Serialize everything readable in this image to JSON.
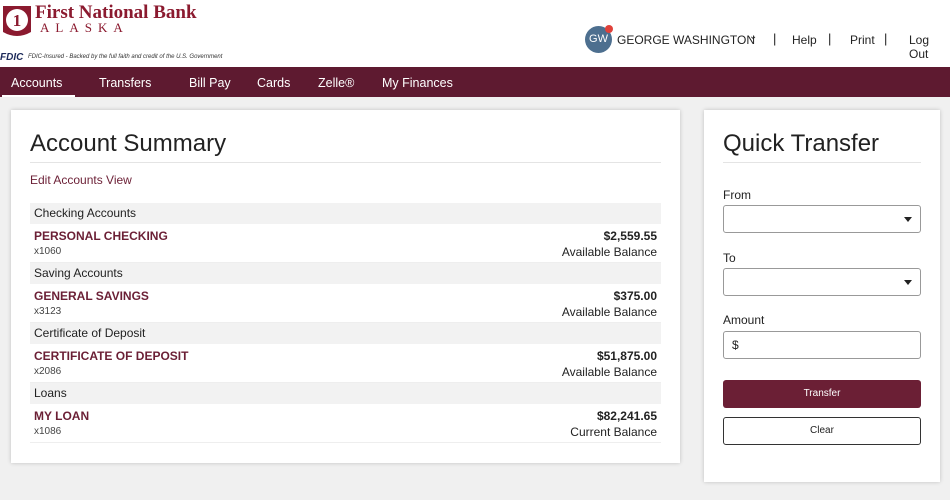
{
  "header": {
    "bank_name": "First National Bank",
    "bank_region": "ALASKA",
    "fdic_logo": "FDIC",
    "fdic_text": "FDIC-Insured - Backed by the full faith and credit of the U.S. Government",
    "user_initials": "GW",
    "user_name": "GEORGE WASHINGTON",
    "links": [
      "Help",
      "Print",
      "Log Out"
    ]
  },
  "nav": [
    "Accounts",
    "Transfers",
    "Bill Pay",
    "Cards",
    "Zelle®",
    "My Finances"
  ],
  "summary": {
    "title": "Account Summary",
    "edit_link": "Edit Accounts View",
    "groups": [
      {
        "heading": "Checking Accounts",
        "name": "PERSONAL CHECKING",
        "number": "x1060",
        "balance": "$2,559.55",
        "balance_type": "Available Balance"
      },
      {
        "heading": "Saving Accounts",
        "name": "GENERAL SAVINGS",
        "number": "x3123",
        "balance": "$375.00",
        "balance_type": "Available Balance"
      },
      {
        "heading": "Certificate of Deposit",
        "name": "CERTIFICATE OF DEPOSIT",
        "number": "x2086",
        "balance": "$51,875.00",
        "balance_type": "Available Balance"
      },
      {
        "heading": "Loans",
        "name": "MY LOAN",
        "number": "x1086",
        "balance": "$82,241.65",
        "balance_type": "Current Balance"
      }
    ]
  },
  "quick_transfer": {
    "title": "Quick Transfer",
    "from_label": "From",
    "to_label": "To",
    "amount_label": "Amount",
    "currency_symbol": "$",
    "transfer_button": "Transfer",
    "clear_button": "Clear"
  }
}
